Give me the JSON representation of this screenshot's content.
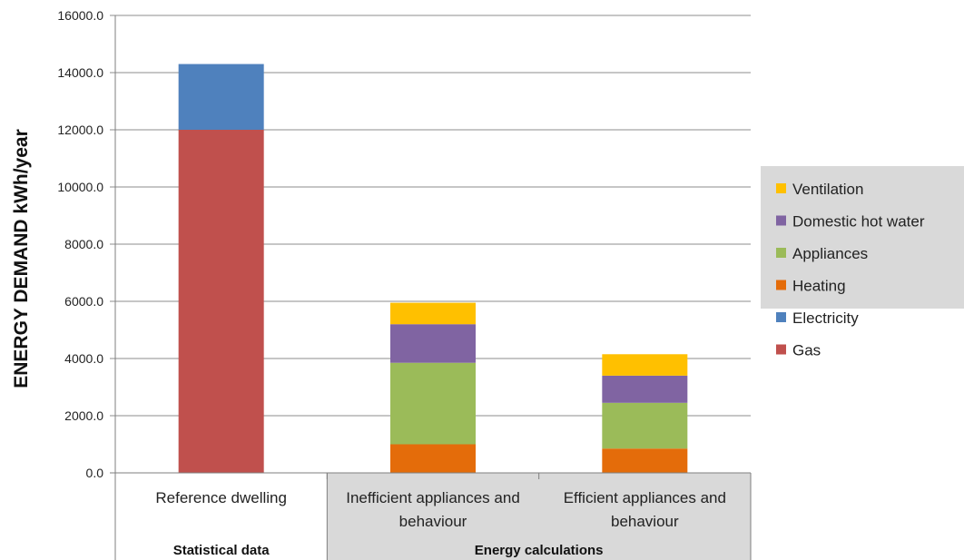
{
  "chart_data": {
    "type": "bar",
    "stacked": true,
    "title": "",
    "xlabel": "",
    "ylabel": "ENERGY DEMAND kWh/year",
    "ylim": [
      0,
      16000
    ],
    "yticks": [
      "0.0",
      "2000.0",
      "4000.0",
      "6000.0",
      "8000.0",
      "10000.0",
      "12000.0",
      "14000.0",
      "16000.0"
    ],
    "grid": true,
    "legend_position": "right",
    "categories": [
      "Reference dwelling",
      "Inefficient appliances and behaviour",
      "Efficient appliances and behaviour"
    ],
    "category_lines": [
      [
        "Reference dwelling"
      ],
      [
        "Inefficient appliances and",
        "behaviour"
      ],
      [
        "Efficient appliances and",
        "behaviour"
      ]
    ],
    "groups": [
      {
        "label": "Statistical data",
        "categories": [
          0
        ]
      },
      {
        "label": "Energy calculations",
        "categories": [
          1,
          2
        ]
      }
    ],
    "series": [
      {
        "name": "Gas",
        "color": "#c0504d",
        "values": [
          12000,
          0,
          0
        ]
      },
      {
        "name": "Electricity",
        "color": "#4f81bd",
        "values": [
          2300,
          0,
          0
        ]
      },
      {
        "name": "Heating",
        "color": "#e46c0a",
        "values": [
          0,
          1000,
          850
        ]
      },
      {
        "name": "Appliances",
        "color": "#9bbb59",
        "values": [
          0,
          2850,
          1600
        ]
      },
      {
        "name": "Domestic hot water",
        "color": "#8064a2",
        "values": [
          0,
          1350,
          950
        ]
      },
      {
        "name": "Ventilation",
        "color": "#ffc000",
        "values": [
          0,
          750,
          750
        ]
      }
    ],
    "legend_order": [
      "Ventilation",
      "Domestic hot water",
      "Appliances",
      "Heating",
      "Electricity",
      "Gas"
    ]
  },
  "colors": {
    "axis": "#7f7f7f",
    "grid": "#8c8c8c",
    "shaded_panel": "#d9d9d9"
  }
}
